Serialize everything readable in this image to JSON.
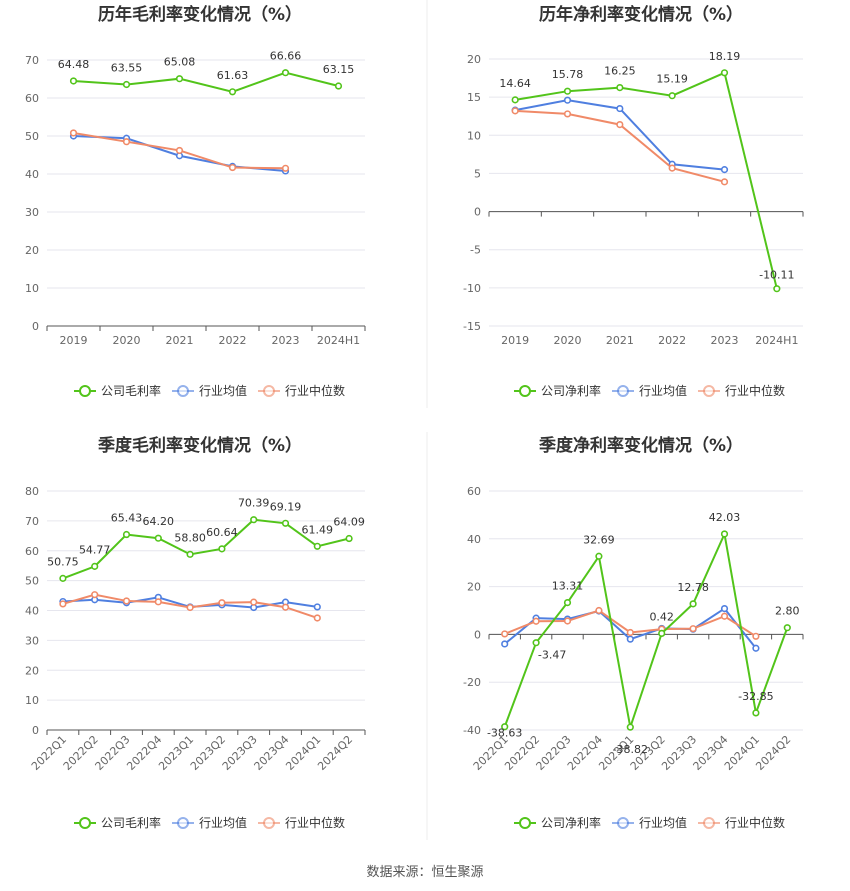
{
  "source_text": "数据来源：恒生聚源",
  "colors": {
    "company": "#52c41a",
    "industry_avg": "#4f7fe0",
    "industry_median": "#f08a68"
  },
  "legend": {
    "industry_avg": "行业均值",
    "industry_median": "行业中位数"
  },
  "chart_data": [
    {
      "type": "line",
      "title": "历年毛利率变化情况（%）",
      "categories": [
        "2019",
        "2020",
        "2021",
        "2022",
        "2023",
        "2024H1"
      ],
      "ylim": [
        0,
        70
      ],
      "yticks": [
        0,
        10,
        20,
        30,
        40,
        50,
        60,
        70
      ],
      "grid": true,
      "legend_position": "bottom",
      "series": [
        {
          "name": "公司毛利率",
          "key": "company",
          "values": [
            64.48,
            63.55,
            65.08,
            61.63,
            66.66,
            63.15
          ],
          "labels": [
            "64.48",
            "63.55",
            "65.08",
            "61.63",
            "66.66",
            "63.15"
          ]
        },
        {
          "name": "行业均值",
          "key": "industry_avg",
          "values": [
            50.0,
            49.4,
            44.8,
            42.0,
            40.8,
            null
          ]
        },
        {
          "name": "行业中位数",
          "key": "industry_median",
          "values": [
            50.8,
            48.5,
            46.2,
            41.7,
            41.5,
            null
          ]
        }
      ]
    },
    {
      "type": "line",
      "title": "历年净利率变化情况（%）",
      "categories": [
        "2019",
        "2020",
        "2021",
        "2022",
        "2023",
        "2024H1"
      ],
      "ylim": [
        -15,
        20
      ],
      "yticks": [
        -15,
        -10,
        -5,
        0,
        5,
        10,
        15,
        20
      ],
      "grid": true,
      "legend_position": "bottom",
      "series": [
        {
          "name": "公司净利率",
          "key": "company",
          "values": [
            14.64,
            15.78,
            16.25,
            15.19,
            18.19,
            -10.11
          ],
          "labels": [
            "14.64",
            "15.78",
            "16.25",
            "15.19",
            "18.19",
            "-10.11"
          ]
        },
        {
          "name": "行业均值",
          "key": "industry_avg",
          "values": [
            13.3,
            14.6,
            13.5,
            6.2,
            5.5,
            null
          ]
        },
        {
          "name": "行业中位数",
          "key": "industry_median",
          "values": [
            13.2,
            12.8,
            11.4,
            5.7,
            3.9,
            null
          ]
        }
      ]
    },
    {
      "type": "line",
      "title": "季度毛利率变化情况（%）",
      "categories": [
        "2022Q1",
        "2022Q2",
        "2022Q3",
        "2022Q4",
        "2023Q1",
        "2023Q2",
        "2023Q3",
        "2023Q4",
        "2024Q1",
        "2024Q2"
      ],
      "ylim": [
        0,
        80
      ],
      "yticks": [
        0,
        10,
        20,
        30,
        40,
        50,
        60,
        70,
        80
      ],
      "grid": true,
      "legend_position": "bottom",
      "series": [
        {
          "name": "公司毛利率",
          "key": "company",
          "values": [
            50.75,
            54.77,
            65.43,
            64.2,
            58.8,
            60.64,
            70.39,
            69.19,
            61.49,
            64.09
          ],
          "labels": [
            "50.75",
            "54.77",
            "65.43",
            "64.20",
            "58.80",
            "60.64",
            "70.39",
            "69.19",
            "61.49",
            "64.09"
          ]
        },
        {
          "name": "行业均值",
          "key": "industry_avg",
          "values": [
            43.0,
            43.6,
            42.6,
            44.4,
            41.2,
            41.9,
            41.0,
            42.8,
            41.2,
            null
          ]
        },
        {
          "name": "行业中位数",
          "key": "industry_median",
          "values": [
            42.2,
            45.3,
            43.2,
            42.9,
            41.0,
            42.6,
            42.8,
            41.1,
            37.5,
            null
          ]
        }
      ]
    },
    {
      "type": "line",
      "title": "季度净利率变化情况（%）",
      "categories": [
        "2022Q1",
        "2022Q2",
        "2022Q3",
        "2022Q4",
        "2023Q1",
        "2023Q2",
        "2023Q3",
        "2023Q4",
        "2024Q1",
        "2024Q2"
      ],
      "ylim": [
        -40,
        60
      ],
      "yticks": [
        -40,
        -20,
        0,
        20,
        40,
        60
      ],
      "grid": true,
      "legend_position": "bottom",
      "series": [
        {
          "name": "公司净利率",
          "key": "company",
          "values": [
            -38.63,
            -3.47,
            13.31,
            32.69,
            -38.82,
            0.42,
            12.78,
            42.03,
            -32.85,
            2.8
          ],
          "labels": [
            "-38.63",
            "-3.47",
            "13.31",
            "32.69",
            "-38.82",
            "0.42",
            "12.78",
            "42.03",
            "-32.85",
            "2.80"
          ]
        },
        {
          "name": "行业均值",
          "key": "industry_avg",
          "values": [
            -4.0,
            6.8,
            6.4,
            9.8,
            -2.0,
            2.5,
            2.2,
            10.8,
            -5.8,
            null
          ]
        },
        {
          "name": "行业中位数",
          "key": "industry_median",
          "values": [
            0.2,
            5.5,
            5.6,
            10.0,
            0.8,
            2.2,
            2.4,
            7.6,
            -0.8,
            null
          ]
        }
      ]
    }
  ]
}
